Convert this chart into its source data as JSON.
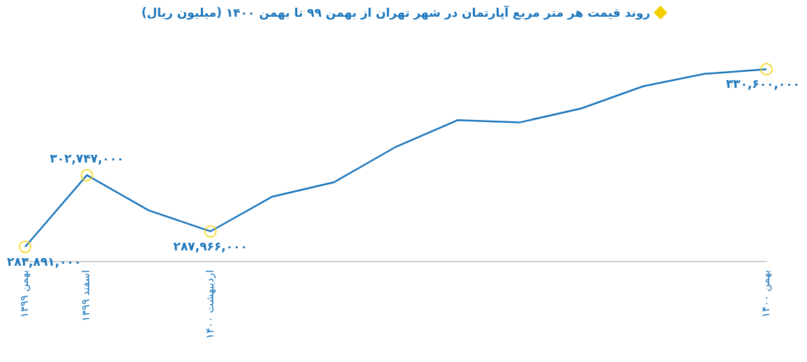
{
  "chart_data": {
    "type": "line",
    "title": "روند قیمت هر متر مربع آپارتمان در شهر تهران از بهمن ۹۹ تا بهمن ۱۴۰۰ (میلیون ریال)",
    "categories": [
      "بهمن ۱۳۹۹",
      "اسفند ۱۳۹۹",
      null,
      "اردیبهشت ۱۴۰۰",
      null,
      null,
      null,
      null,
      null,
      null,
      null,
      null,
      "بهمن ۱۴۰۰"
    ],
    "series": [
      {
        "color": "#1a75bb",
        "values": [
          283891000,
          302747000,
          293500000,
          287966000,
          297100000,
          300900000,
          310200000,
          317200000,
          316600000,
          320300000,
          326100000,
          329400000,
          330600000
        ],
        "value_labels": [
          "۲۸۳,۸۹۱,۰۰۰",
          "۳۰۲,۷۴۷,۰۰۰",
          null,
          "۲۸۷,۹۶۶,۰۰۰",
          null,
          null,
          null,
          null,
          null,
          null,
          null,
          null,
          "۳۳۰,۶۰۰,۰۰۰"
        ]
      }
    ],
    "grid": false,
    "legend": false
  }
}
